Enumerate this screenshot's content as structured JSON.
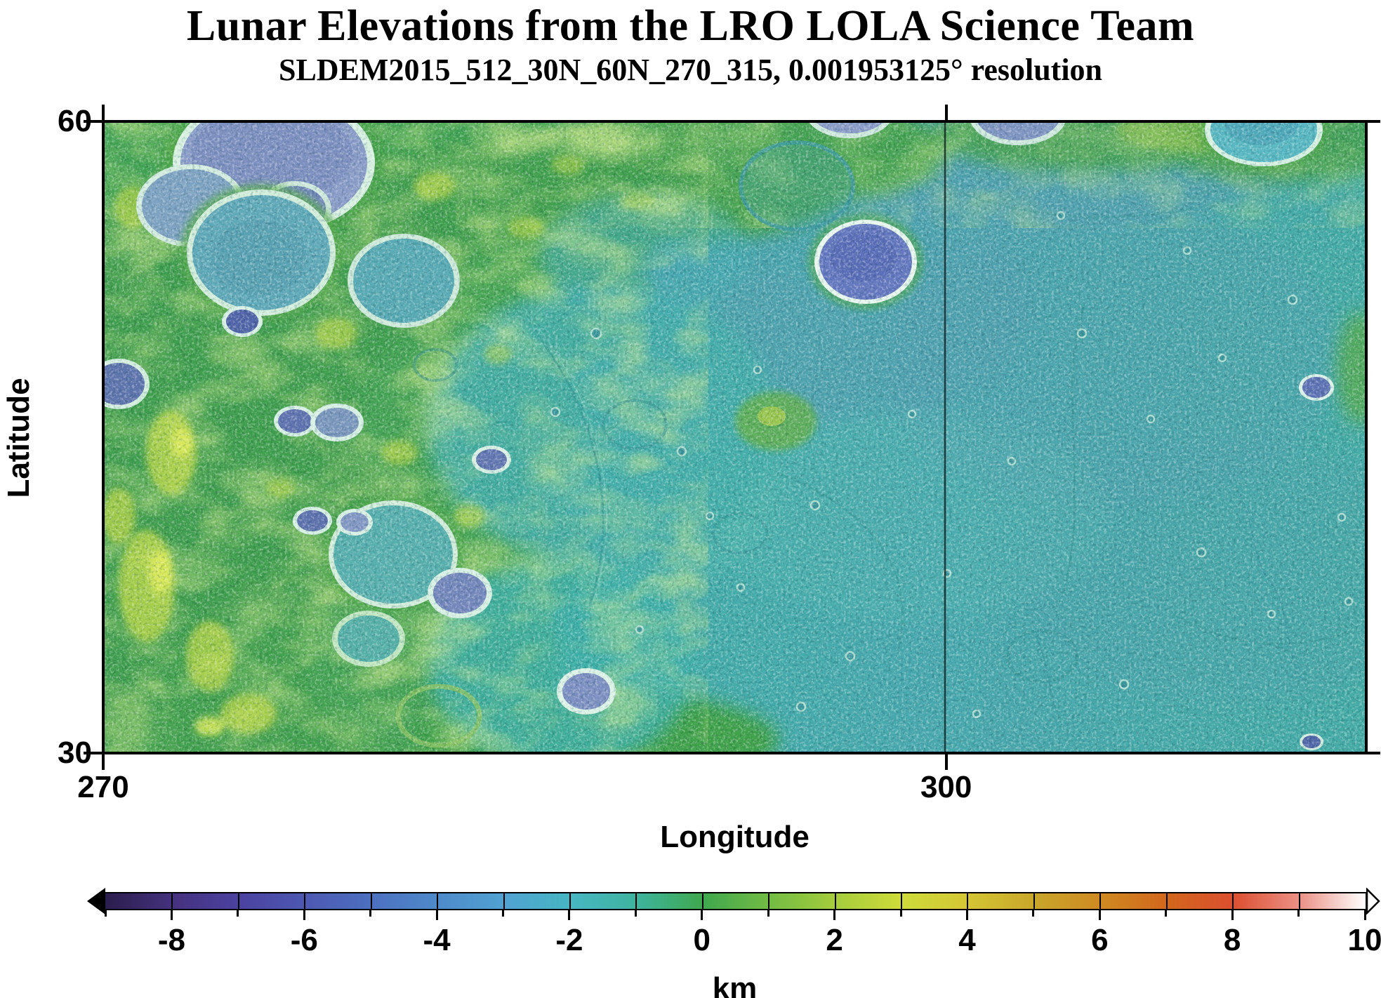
{
  "title": "Lunar Elevations from the LRO LOLA Science Team",
  "subtitle": "SLDEM2015_512_30N_60N_270_315, 0.001953125° resolution",
  "map": {
    "xlabel": "Longitude",
    "ylabel": "Latitude",
    "lon_min": 270,
    "lon_max": 315,
    "lat_min": 30,
    "lat_max": 60,
    "lon_ticks": [
      {
        "value": 270,
        "text": "270"
      },
      {
        "value": 300,
        "text": "300"
      }
    ],
    "lat_ticks": [
      {
        "value": 60,
        "text": "60"
      },
      {
        "value": 30,
        "text": "30"
      }
    ],
    "gridline_lon": 300,
    "base_colors": {
      "mare_teal": "#41ada4",
      "highland_green": "#3fa352",
      "ridge_yellow": "#c9de4b",
      "crater_blue": "#7e92c4"
    }
  },
  "colorbar": {
    "label": "km",
    "min": -9,
    "max": 10,
    "minor_tick_step": 1,
    "labels": [
      {
        "value": -8,
        "text": "-8"
      },
      {
        "value": -6,
        "text": "-6"
      },
      {
        "value": -4,
        "text": "-4"
      },
      {
        "value": -2,
        "text": "-2"
      },
      {
        "value": 0,
        "text": "0"
      },
      {
        "value": 2,
        "text": "2"
      },
      {
        "value": 4,
        "text": "4"
      },
      {
        "value": 6,
        "text": "6"
      },
      {
        "value": 8,
        "text": "8"
      },
      {
        "value": 10,
        "text": "10"
      }
    ],
    "stops": [
      "#2a1d4c",
      "#45317e",
      "#4b42a0",
      "#4d58b2",
      "#4c70c0",
      "#4e8aca",
      "#50a2d2",
      "#46b6c2",
      "#3eb49e",
      "#3fa84e",
      "#72bc44",
      "#a6cc3c",
      "#cedc3a",
      "#d4c634",
      "#c9a62a",
      "#cf8a22",
      "#d2661c",
      "#dc4f30",
      "#eb9186",
      "#ffffff"
    ],
    "end_arrows": {
      "left": "#000000",
      "right": "#ffffff"
    }
  }
}
